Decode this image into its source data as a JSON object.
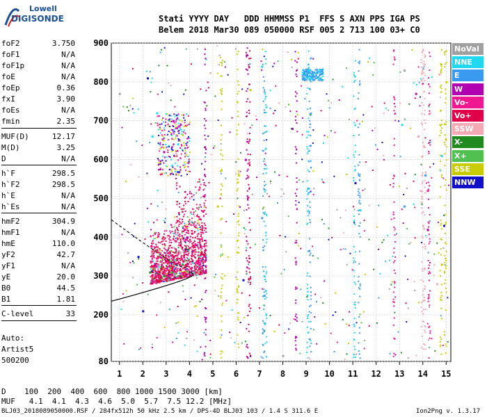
{
  "logo": {
    "line1": "Lowell",
    "line2": "DIGISONDE"
  },
  "header": {
    "row1": "Stati YYYY DAY   DDD HHMMSS P1  FFS S AXN PPS IGA PS",
    "row2": "Belem 2018 Mar30 089 050000 RSF 005 2 713 100 03+ C0"
  },
  "params": [
    {
      "k": "foF2",
      "v": "3.750"
    },
    {
      "k": "foF1",
      "v": "N/A"
    },
    {
      "k": "foF1p",
      "v": "N/A"
    },
    {
      "k": "foE",
      "v": "N/A"
    },
    {
      "k": "foEp",
      "v": "0.36"
    },
    {
      "k": "fxI",
      "v": "3.90"
    },
    {
      "k": "foEs",
      "v": "N/A"
    },
    {
      "k": "fmin",
      "v": "2.35"
    },
    {
      "k": "MUF(D)",
      "v": "12.17"
    },
    {
      "k": "M(D)",
      "v": "3.25"
    },
    {
      "k": "D",
      "v": "N/A"
    },
    {
      "k": "h`F",
      "v": "298.5"
    },
    {
      "k": "h`F2",
      "v": "298.5"
    },
    {
      "k": "h`E",
      "v": "N/A"
    },
    {
      "k": "h`Es",
      "v": "N/A"
    },
    {
      "k": "hmF2",
      "v": "304.9"
    },
    {
      "k": "hmF1",
      "v": "N/A"
    },
    {
      "k": "hmE",
      "v": "110.0"
    },
    {
      "k": "yF2",
      "v": "42.7"
    },
    {
      "k": "yF1",
      "v": "N/A"
    },
    {
      "k": "yE",
      "v": "20.0"
    },
    {
      "k": "B0",
      "v": "44.5"
    },
    {
      "k": "B1",
      "v": "1.81"
    },
    {
      "k": "C-level",
      "v": "33"
    }
  ],
  "auto": {
    "l1": "Auto:",
    "l2": "Artist5",
    "l3": "500200"
  },
  "muf_table": {
    "row_d": "D    100  200  400  600  800 1000 1500 3000 [km]",
    "row_m": "MUF   4.1  4.1  4.3  4.6  5.0  5.7  7.5 12.2 [MHz]"
  },
  "footer": {
    "left": "BLJ03_2018089050000.RSF / 284fx512h 50 kHz 2.5 km / DPS-4D BLJ03 103 / 1.4 S 311.6 E",
    "right": "Ion2Png v. 1.3.17"
  },
  "legend": [
    {
      "label": "NoVal",
      "color": "#a0a0a0"
    },
    {
      "label": "NNE",
      "color": "#20d8f0"
    },
    {
      "label": "E",
      "color": "#3a9af0"
    },
    {
      "label": "W",
      "color": "#b000b0"
    },
    {
      "label": "Vo-",
      "color": "#f01890"
    },
    {
      "label": "Vo+",
      "color": "#e0004a"
    },
    {
      "label": "SSW",
      "color": "#f4aab4"
    },
    {
      "label": "X-",
      "color": "#208a20"
    },
    {
      "label": "X+",
      "color": "#50c050"
    },
    {
      "label": "SSE",
      "color": "#c8cc00"
    },
    {
      "label": "NNW",
      "color": "#1010c8"
    }
  ],
  "chart_data": {
    "type": "scatter",
    "title": "",
    "xlabel": "",
    "ylabel": "",
    "xlim": [
      1,
      15
    ],
    "ylim": [
      80,
      900
    ],
    "x_ticks": [
      "1",
      "2",
      "3",
      "4",
      "5",
      "6",
      "7",
      "8",
      "9",
      "10",
      "11",
      "12",
      "13",
      "14",
      "15"
    ],
    "y_ticks": [
      "80",
      "200",
      "300",
      "400",
      "500",
      "600",
      "700",
      "800",
      "900"
    ],
    "series": [
      {
        "name": "NoVal",
        "values": [
          [
            1.0,
            770
          ],
          [
            8.0,
            95
          ],
          [
            13.2,
            830
          ]
        ]
      },
      {
        "name": "NNE",
        "values": [
          [
            2.4,
            660
          ],
          [
            2.6,
            720
          ],
          [
            3.5,
            640
          ],
          [
            7.1,
            840
          ],
          [
            7.2,
            300
          ],
          [
            9.2,
            810
          ],
          [
            11.3,
            470
          ],
          [
            13.1,
            690
          ],
          [
            14.8,
            610
          ]
        ]
      },
      {
        "name": "E",
        "values": [
          [
            7.1,
            450
          ],
          [
            7.2,
            250
          ],
          [
            8.9,
            820
          ],
          [
            9.1,
            825
          ],
          [
            9.3,
            815
          ],
          [
            9.6,
            820
          ],
          [
            13.2,
            480
          ],
          [
            14.1,
            560
          ]
        ]
      },
      {
        "name": "W",
        "values": [
          [
            2.9,
            620
          ],
          [
            3.3,
            700
          ],
          [
            3.9,
            400
          ],
          [
            4.3,
            380
          ],
          [
            6.4,
            600
          ],
          [
            8.4,
            680
          ],
          [
            13.7,
            770
          ],
          [
            14.2,
            420
          ]
        ]
      },
      {
        "name": "Vo-",
        "values": [
          [
            2.8,
            330
          ],
          [
            3.1,
            360
          ],
          [
            3.4,
            390
          ],
          [
            3.8,
            420
          ],
          [
            4.4,
            330
          ],
          [
            14.2,
            520
          ]
        ]
      },
      {
        "name": "Vo+",
        "values": [
          [
            2.7,
            310
          ],
          [
            3.0,
            340
          ],
          [
            3.3,
            350
          ],
          [
            3.6,
            380
          ],
          [
            4.1,
            410
          ],
          [
            4.5,
            360
          ]
        ]
      },
      {
        "name": "SSW",
        "values": [
          [
            13.8,
            660
          ],
          [
            13.9,
            520
          ],
          [
            14.0,
            430
          ],
          [
            14.3,
            720
          ],
          [
            14.6,
            280
          ],
          [
            14.7,
            820
          ]
        ]
      },
      {
        "name": "X-",
        "values": [
          [
            2.3,
            310
          ],
          [
            2.9,
            300
          ],
          [
            3.7,
            330
          ]
        ]
      },
      {
        "name": "X+",
        "values": [
          [
            2.5,
            320
          ],
          [
            3.2,
            310
          ],
          [
            3.8,
            340
          ]
        ]
      },
      {
        "name": "SSE",
        "values": [
          [
            5.2,
            480
          ],
          [
            6.1,
            560
          ],
          [
            6.6,
            780
          ],
          [
            14.8,
            330
          ],
          [
            15.0,
            800
          ]
        ]
      },
      {
        "name": "NNW",
        "values": [
          [
            1.8,
            350
          ],
          [
            2.0,
            210
          ],
          [
            2.2,
            810
          ],
          [
            6.3,
            290
          ],
          [
            11.1,
            540
          ],
          [
            14.9,
            430
          ]
        ]
      }
    ]
  }
}
